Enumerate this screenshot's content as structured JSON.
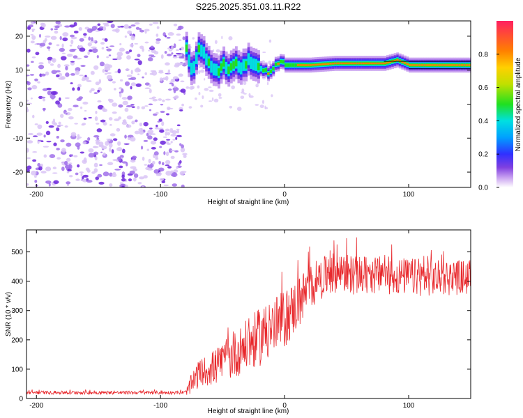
{
  "title": "S225.2025.351.03.11.R22",
  "chart_data": [
    {
      "type": "heatmap",
      "name": "spectrogram",
      "xlabel": "Height of straight line (km)",
      "ylabel": "Frequency (Hz)",
      "xlim": [
        -208,
        150
      ],
      "ylim": [
        -24.5,
        24.5
      ],
      "xticks": [
        -200,
        -100,
        0,
        100
      ],
      "yticks": [
        -20,
        -10,
        0,
        10,
        20
      ],
      "xtick_labels": [
        "-200",
        "-100",
        "0",
        "100"
      ],
      "ytick_labels": [
        "-20",
        "-10",
        "0",
        "10",
        "20"
      ],
      "colorbar": {
        "label": "Normalized spectral amplitude",
        "range": [
          0,
          1
        ],
        "ticks": [
          0,
          0.2,
          0.4,
          0.6,
          0.8
        ],
        "tick_labels": [
          "0.0",
          "0.2",
          "0.4",
          "0.6",
          "0.8"
        ],
        "colors": [
          "#ffffff",
          "#c8a0f0",
          "#8040e0",
          "#3030ff",
          "#00a0ff",
          "#00e0e0",
          "#20e020",
          "#c0e000",
          "#ffd000",
          "#ff8000",
          "#ff2060"
        ]
      },
      "noise_region_x": [
        -208,
        -80
      ],
      "signal_ridge": [
        {
          "x": -80,
          "f": 17
        },
        {
          "x": -78,
          "f": 13
        },
        {
          "x": -75,
          "f": 10
        },
        {
          "x": -70,
          "f": 17
        },
        {
          "x": -65,
          "f": 14
        },
        {
          "x": -60,
          "f": 11
        },
        {
          "x": -55,
          "f": 9
        },
        {
          "x": -50,
          "f": 12
        },
        {
          "x": -45,
          "f": 10
        },
        {
          "x": -40,
          "f": 12
        },
        {
          "x": -35,
          "f": 11
        },
        {
          "x": -30,
          "f": 13
        },
        {
          "x": -25,
          "f": 12
        },
        {
          "x": -20,
          "f": 11
        },
        {
          "x": -15,
          "f": 9.5
        },
        {
          "x": -10,
          "f": 10.5
        },
        {
          "x": -5,
          "f": 12
        },
        {
          "x": 0,
          "f": 11.5
        },
        {
          "x": 10,
          "f": 11.5
        },
        {
          "x": 20,
          "f": 11.5
        },
        {
          "x": 40,
          "f": 12
        },
        {
          "x": 60,
          "f": 12
        },
        {
          "x": 80,
          "f": 12
        },
        {
          "x": 90,
          "f": 13
        },
        {
          "x": 100,
          "f": 11.5
        },
        {
          "x": 150,
          "f": 11.5
        }
      ]
    },
    {
      "type": "line",
      "name": "snr",
      "xlabel": "Height of straight line (km)",
      "ylabel": "SNR (10 * v/v)",
      "xlim": [
        -208,
        150
      ],
      "ylim": [
        0,
        575
      ],
      "xticks": [
        -200,
        -100,
        0,
        100
      ],
      "yticks": [
        0,
        100,
        200,
        300,
        400,
        500
      ],
      "xtick_labels": [
        "-200",
        "-100",
        "0",
        "100"
      ],
      "ytick_labels": [
        "0",
        "100",
        "200",
        "300",
        "400",
        "500"
      ],
      "line_color": "#e8282c",
      "trend": [
        {
          "x": -208,
          "snr": 20
        },
        {
          "x": -80,
          "snr": 20
        },
        {
          "x": -75,
          "snr": 45
        },
        {
          "x": -70,
          "snr": 80
        },
        {
          "x": -60,
          "snr": 100
        },
        {
          "x": -50,
          "snr": 120
        },
        {
          "x": -40,
          "snr": 150
        },
        {
          "x": -30,
          "snr": 180
        },
        {
          "x": -20,
          "snr": 210
        },
        {
          "x": -10,
          "snr": 240
        },
        {
          "x": 0,
          "snr": 270
        },
        {
          "x": 10,
          "snr": 320
        },
        {
          "x": 20,
          "snr": 380
        },
        {
          "x": 30,
          "snr": 410
        },
        {
          "x": 40,
          "snr": 430
        },
        {
          "x": 60,
          "snr": 420
        },
        {
          "x": 80,
          "snr": 420
        },
        {
          "x": 100,
          "snr": 415
        },
        {
          "x": 120,
          "snr": 410
        },
        {
          "x": 150,
          "snr": 415
        }
      ],
      "noise_amplitude": [
        {
          "x": -208,
          "amp": 6
        },
        {
          "x": -80,
          "amp": 6
        },
        {
          "x": -75,
          "amp": 40
        },
        {
          "x": -50,
          "amp": 70
        },
        {
          "x": -20,
          "amp": 100
        },
        {
          "x": 0,
          "amp": 100
        },
        {
          "x": 30,
          "amp": 70
        },
        {
          "x": 150,
          "amp": 60
        }
      ]
    }
  ]
}
